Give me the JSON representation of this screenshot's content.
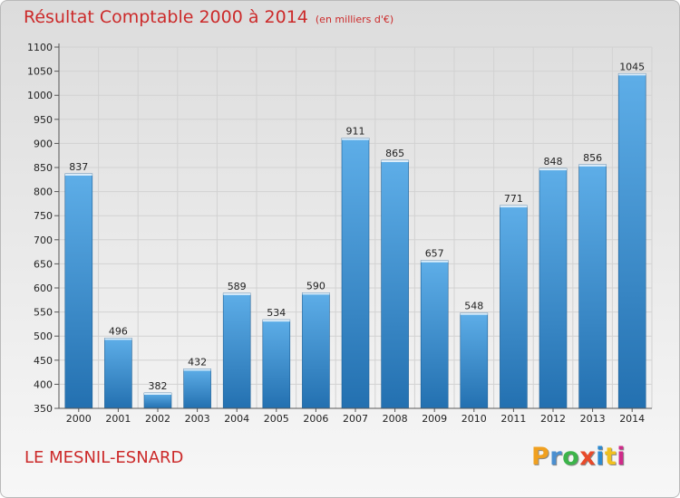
{
  "header": {
    "title": "Résultat Comptable 2000 à 2014",
    "subtitle": "(en milliers d'€)"
  },
  "footer": {
    "location": "LE MESNIL-ESNARD",
    "logo": {
      "text": "Proxiti",
      "colors": [
        "#f0a020",
        "#4a8fd0",
        "#3cb44a",
        "#e84a2a",
        "#2c8ad0",
        "#f0c020",
        "#d02a8a"
      ]
    }
  },
  "colors": {
    "accent": "#cc2a2a",
    "bar_top": "#5eaee8",
    "bar_bottom": "#2370b0"
  },
  "chart_data": {
    "type": "bar",
    "categories": [
      "2000",
      "2001",
      "2002",
      "2003",
      "2004",
      "2005",
      "2006",
      "2007",
      "2008",
      "2009",
      "2010",
      "2011",
      "2012",
      "2013",
      "2014"
    ],
    "values": [
      837,
      496,
      382,
      432,
      589,
      534,
      590,
      911,
      865,
      657,
      548,
      771,
      848,
      856,
      1045
    ],
    "data_labels": [
      "837",
      "496",
      "382",
      "432",
      "589",
      "534",
      "590",
      "911",
      "865",
      "657",
      "548",
      "771",
      "848",
      "856",
      "1045"
    ],
    "yticks": [
      "350",
      "400",
      "450",
      "500",
      "550",
      "600",
      "650",
      "700",
      "750",
      "800",
      "850",
      "900",
      "950",
      "1000",
      "1050",
      "1100"
    ],
    "ylim": [
      350,
      1100
    ],
    "grid": true,
    "title": "Résultat Comptable 2000 à 2014",
    "xlabel": "",
    "ylabel": ""
  }
}
